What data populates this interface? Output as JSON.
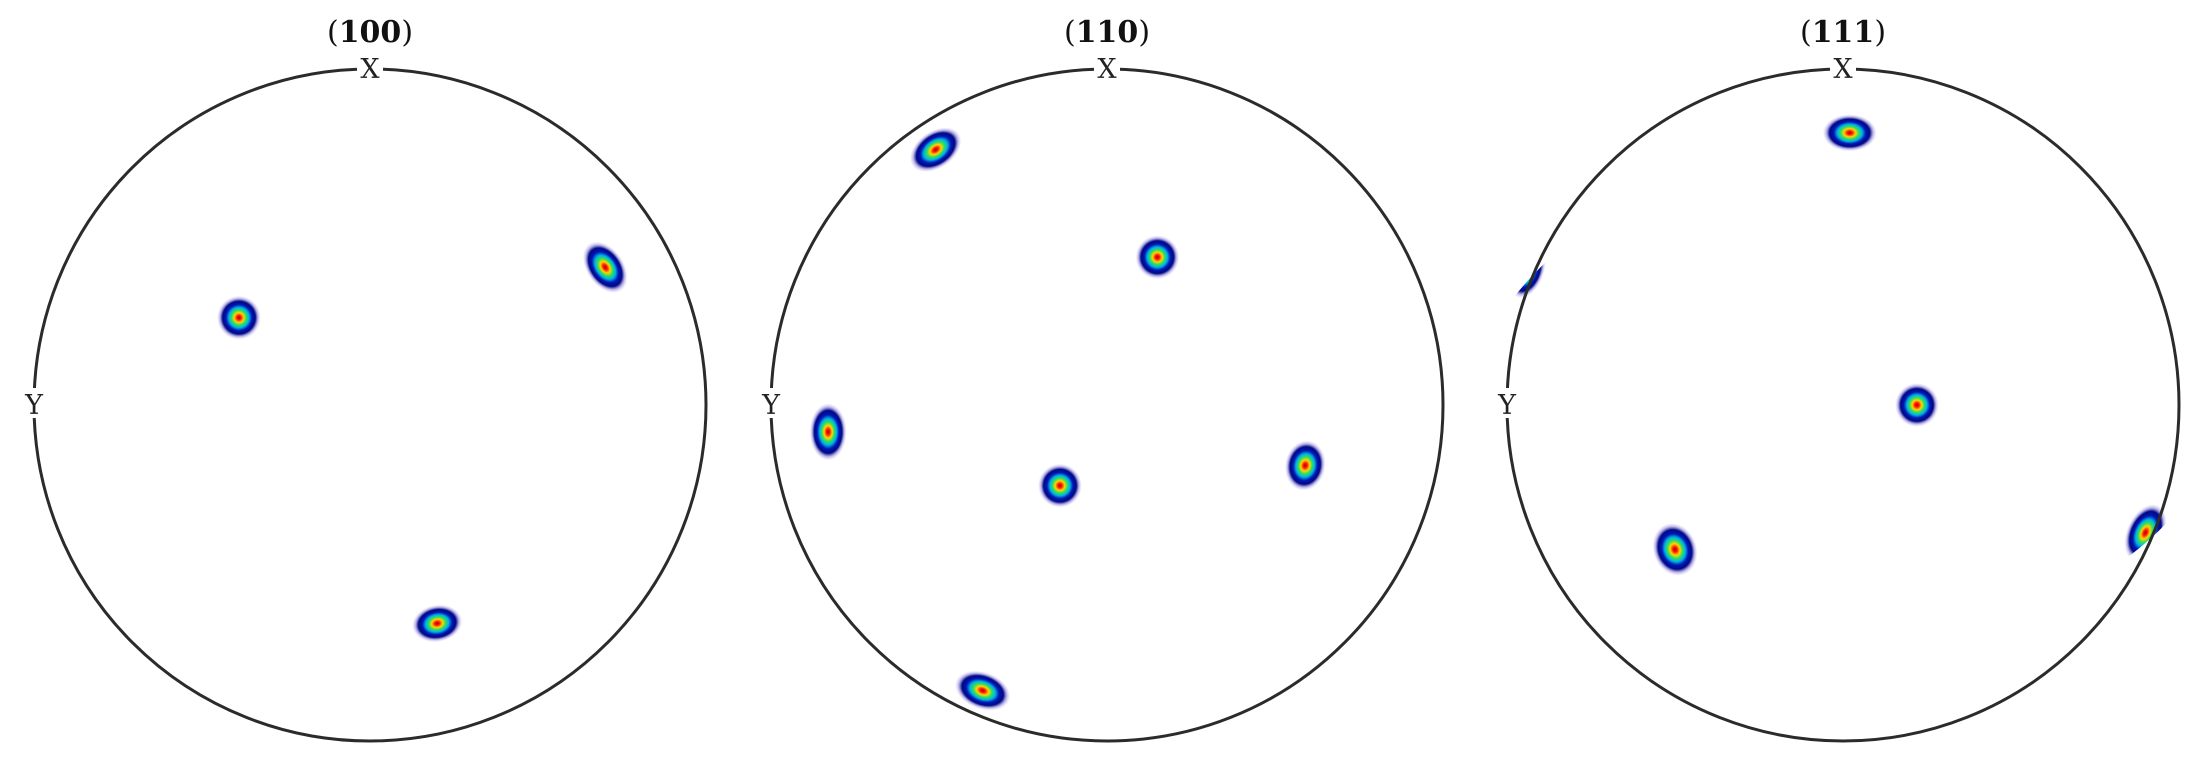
{
  "chart_data": [
    {
      "type": "scatter",
      "title": "(100)",
      "title_bold": "100",
      "axis_top": "X",
      "axis_left": "Y",
      "x_range": [
        -1,
        1
      ],
      "y_range": [
        -1,
        1
      ],
      "points": [
        {
          "x": 0.7,
          "y": 0.41,
          "sx": 0.055,
          "sy": 0.085,
          "tilt": -35
        },
        {
          "x": -0.39,
          "y": 0.26,
          "sx": 0.065,
          "sy": 0.065,
          "tilt": 0
        },
        {
          "x": 0.2,
          "y": -0.65,
          "sx": 0.075,
          "sy": 0.055,
          "tilt": -10
        }
      ]
    },
    {
      "type": "scatter",
      "title": "(110)",
      "title_bold": "110",
      "axis_top": "X",
      "axis_left": "Y",
      "x_range": [
        -1,
        1
      ],
      "y_range": [
        -1,
        1
      ],
      "points": [
        {
          "x": -0.51,
          "y": 0.76,
          "sx": 0.085,
          "sy": 0.055,
          "tilt": -35
        },
        {
          "x": 0.15,
          "y": 0.44,
          "sx": 0.065,
          "sy": 0.065,
          "tilt": 0
        },
        {
          "x": -0.83,
          "y": -0.08,
          "sx": 0.055,
          "sy": 0.085,
          "tilt": 0
        },
        {
          "x": -0.14,
          "y": -0.24,
          "sx": 0.065,
          "sy": 0.065,
          "tilt": 0
        },
        {
          "x": 0.59,
          "y": -0.18,
          "sx": 0.06,
          "sy": 0.075,
          "tilt": 10
        },
        {
          "x": -0.37,
          "y": -0.85,
          "sx": 0.085,
          "sy": 0.055,
          "tilt": 20
        }
      ]
    },
    {
      "type": "scatter",
      "title": "(111)",
      "title_bold": "111",
      "axis_top": "X",
      "axis_left": "Y",
      "x_range": [
        -1,
        1
      ],
      "y_range": [
        -1,
        1
      ],
      "points": [
        {
          "x": 0.02,
          "y": 0.81,
          "sx": 0.08,
          "sy": 0.055,
          "tilt": 0
        },
        {
          "x": -0.94,
          "y": 0.4,
          "sx": 0.05,
          "sy": 0.085,
          "tilt": 20
        },
        {
          "x": 0.22,
          "y": 0.0,
          "sx": 0.065,
          "sy": 0.065,
          "tilt": 0
        },
        {
          "x": -0.5,
          "y": -0.43,
          "sx": 0.065,
          "sy": 0.08,
          "tilt": -20
        },
        {
          "x": 0.9,
          "y": -0.38,
          "sx": 0.055,
          "sy": 0.09,
          "tilt": 25
        }
      ]
    }
  ]
}
